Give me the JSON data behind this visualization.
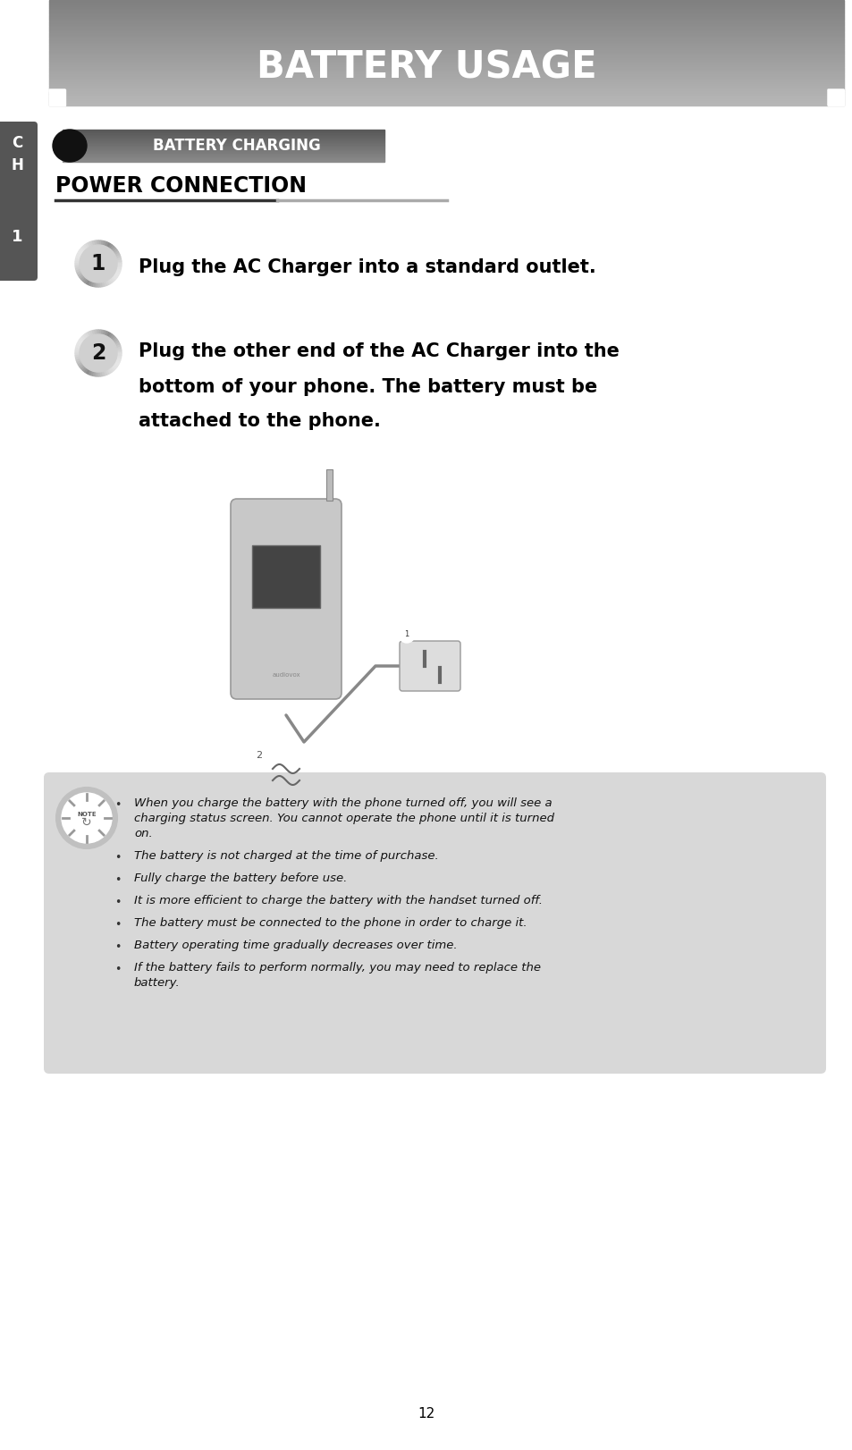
{
  "title": "BATTERY USAGE",
  "background_color": "#ffffff",
  "header_text_color": "#ffffff",
  "sidebar_color": "#555555",
  "sidebar_texts": [
    "C",
    "H",
    "1"
  ],
  "section_label": "BATTERY CHARGING",
  "subsection_title": "POWER CONNECTION",
  "step1_text": "Plug the AC Charger into a standard outlet.",
  "step2_line1": "Plug the other end of the AC Charger into the",
  "step2_line2": "bottom of your phone. The battery must be",
  "step2_line3": "attached to the phone.",
  "note_bullets": [
    "When you charge the battery with the phone turned off, you will see a charging status screen. You cannot operate the phone until it is turned on.",
    "The battery is not charged at the time of purchase.",
    "Fully charge the battery before use.",
    "It is more efficient to charge the battery with the handset turned off.",
    "The battery must be connected to the phone in order to charge it.",
    "Battery operating time gradually decreases over time.",
    "If the battery fails to perform normally, you may need to replace the battery."
  ],
  "note_bg": "#d8d8d8",
  "page_number": "12",
  "fig_width": 9.54,
  "fig_height": 16.22,
  "dpi": 100
}
